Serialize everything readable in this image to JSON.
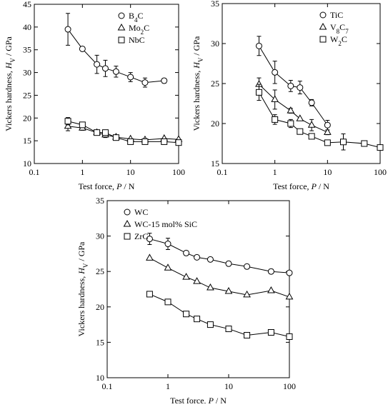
{
  "chart_data": [
    {
      "type": "line",
      "xscale": "log",
      "xlim": [
        0.1,
        100
      ],
      "xticks": [
        0.1,
        1,
        10,
        100
      ],
      "ylim": [
        10,
        45
      ],
      "yticks": [
        10,
        15,
        20,
        25,
        30,
        35,
        40,
        45
      ],
      "xlabel_parts": [
        "Test force, ",
        "P",
        " / N"
      ],
      "ylabel_parts": [
        "Vickers hardness, ",
        "H",
        "V",
        " / GPa"
      ],
      "legend": "upper right",
      "series": [
        {
          "name": "B4C",
          "marker": "circle",
          "color": "#000000",
          "x": [
            0.5,
            1,
            2,
            3,
            5,
            10,
            20,
            50
          ],
          "values": [
            39.5,
            35.2,
            31.8,
            30.9,
            30.2,
            29,
            27.8,
            28.2
          ],
          "errors": [
            3.5,
            null,
            2,
            1.8,
            1.2,
            1,
            1,
            0.5
          ]
        },
        {
          "name": "Mo2C",
          "marker": "triangle",
          "color": "#000000",
          "x": [
            0.5,
            1,
            2,
            3,
            5,
            10,
            20,
            50,
            100
          ],
          "values": [
            18.2,
            17.8,
            16.8,
            16.3,
            15.8,
            15.4,
            15.2,
            15.5,
            15.3
          ],
          "errors": [
            1,
            0.5,
            null,
            0.6,
            null,
            null,
            null,
            null,
            null
          ]
        },
        {
          "name": "NbC",
          "marker": "square",
          "color": "#000000",
          "x": [
            0.5,
            1,
            2,
            3,
            5,
            10,
            20,
            50,
            100
          ],
          "values": [
            19.3,
            18.5,
            16.8,
            16.8,
            15.7,
            14.8,
            14.8,
            14.8,
            14.6
          ],
          "errors": [
            0.8,
            null,
            null,
            null,
            null,
            null,
            null,
            null,
            null
          ]
        }
      ]
    },
    {
      "type": "line",
      "xscale": "log",
      "xlim": [
        0.1,
        100
      ],
      "xticks": [
        0.1,
        1,
        10,
        100
      ],
      "ylim": [
        15,
        35
      ],
      "yticks": [
        15,
        20,
        25,
        30,
        35
      ],
      "xlabel_parts": [
        "Test force, ",
        "P",
        " / N"
      ],
      "ylabel_parts": [
        "Vickers hardness, ",
        "H",
        "V",
        " / GPa"
      ],
      "legend": "upper right",
      "series": [
        {
          "name": "TiC",
          "marker": "circle",
          "color": "#000000",
          "x": [
            0.5,
            1,
            2,
            3,
            5,
            10
          ],
          "values": [
            29.7,
            26.4,
            24.7,
            24.5,
            22.6,
            19.8
          ],
          "errors": [
            1.2,
            1.4,
            0.7,
            0.8,
            0.4,
            0.6
          ]
        },
        {
          "name": "V8C7",
          "marker": "triangle",
          "color": "#000000",
          "x": [
            0.5,
            1,
            2,
            3,
            5,
            10
          ],
          "values": [
            24.9,
            23,
            21.6,
            20.6,
            19.8,
            18.9
          ],
          "errors": [
            0.8,
            1.2,
            0.3,
            null,
            0.7,
            0.3
          ]
        },
        {
          "name": "W2C",
          "marker": "square",
          "color": "#000000",
          "x": [
            0.5,
            1,
            2,
            3,
            5,
            10,
            20,
            50,
            100
          ],
          "values": [
            23.9,
            20.5,
            20,
            19,
            18.4,
            17.6,
            17.7,
            17.5,
            17
          ],
          "errors": [
            1,
            0.6,
            0.5,
            null,
            null,
            null,
            1,
            null,
            null
          ]
        }
      ]
    },
    {
      "type": "line",
      "xscale": "log",
      "xlim": [
        0.1,
        100
      ],
      "xticks": [
        0.1,
        1,
        10,
        100
      ],
      "ylim": [
        10,
        35
      ],
      "yticks": [
        10,
        15,
        20,
        25,
        30,
        35
      ],
      "xlabel_parts": [
        "Test force, ",
        "P",
        " / N"
      ],
      "ylabel_parts": [
        "Vickers hardness, ",
        "H",
        "V",
        " / GPa"
      ],
      "legend": "upper left",
      "series": [
        {
          "name": "WC",
          "marker": "circle",
          "color": "#000000",
          "x": [
            0.5,
            1,
            2,
            3,
            5,
            10,
            20,
            50,
            100
          ],
          "values": [
            29.6,
            28.9,
            27.6,
            27,
            26.7,
            26.1,
            25.7,
            25,
            24.8
          ],
          "errors": [
            0.8,
            0.8,
            0.3,
            null,
            null,
            0.3,
            0.3,
            0.3,
            null
          ]
        },
        {
          "name": "WC-15 mol% SiC",
          "marker": "triangle",
          "color": "#000000",
          "x": [
            0.5,
            1,
            2,
            3,
            5,
            10,
            20,
            50,
            100
          ],
          "values": [
            26.9,
            25.5,
            24.2,
            23.6,
            22.7,
            22.2,
            21.7,
            22.3,
            21.4
          ],
          "errors": [
            null,
            null,
            null,
            null,
            null,
            null,
            null,
            null,
            null
          ]
        },
        {
          "name": "ZrC",
          "marker": "square",
          "color": "#000000",
          "x": [
            0.5,
            1,
            2,
            3,
            5,
            10,
            20,
            50,
            100
          ],
          "values": [
            21.8,
            20.7,
            19,
            18.3,
            17.5,
            16.9,
            16,
            16.4,
            15.8
          ],
          "errors": [
            null,
            null,
            null,
            null,
            null,
            null,
            null,
            null,
            null
          ]
        }
      ]
    }
  ]
}
